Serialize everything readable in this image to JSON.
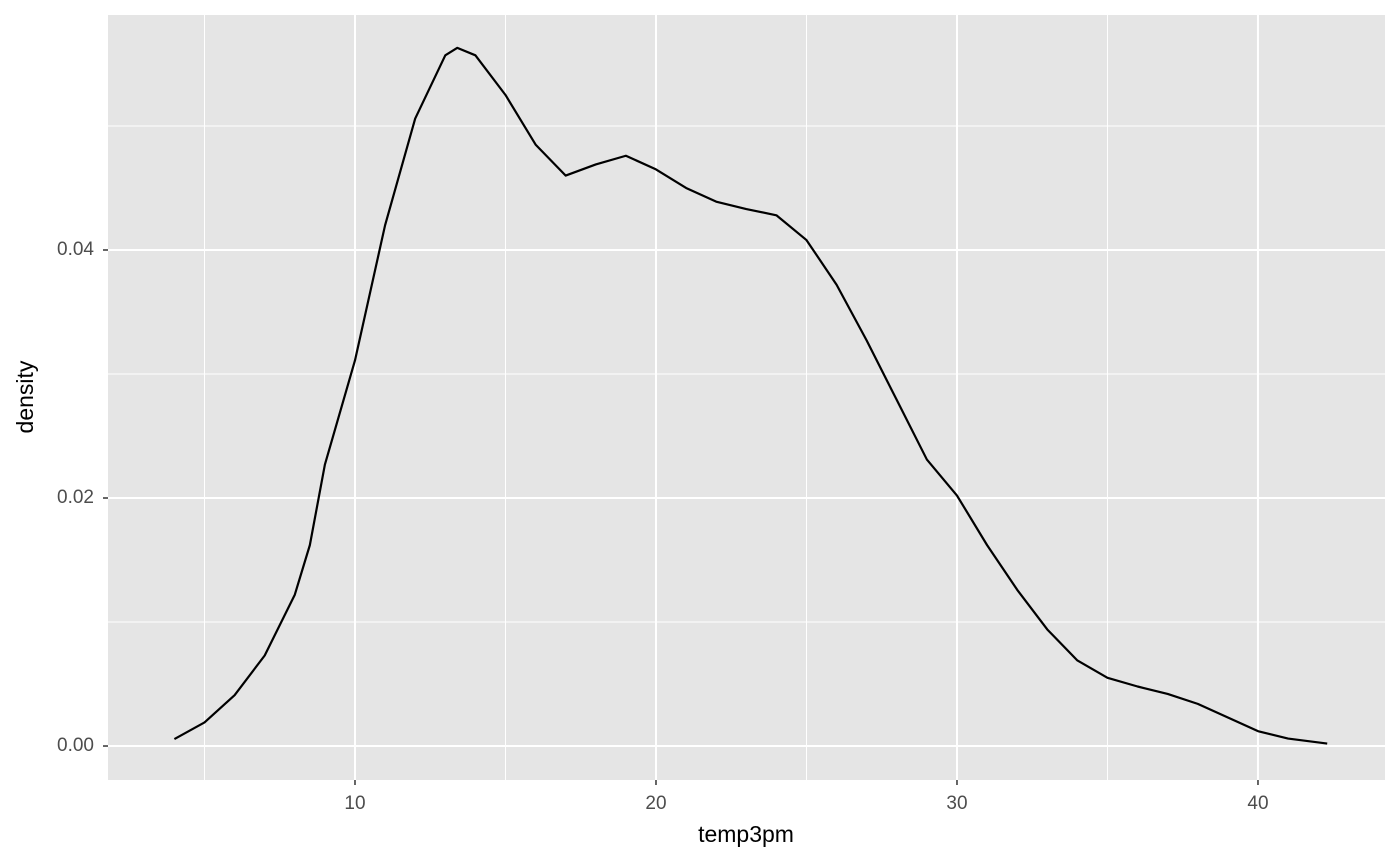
{
  "chart_data": {
    "type": "line",
    "x_label": "temp3pm",
    "y_label": "density",
    "x": [
      4,
      5,
      6,
      7,
      8,
      8.5,
      9,
      10,
      11,
      12,
      13,
      13.4,
      14,
      15,
      16,
      17,
      18,
      19,
      20,
      21,
      22,
      23,
      24,
      25,
      26,
      27,
      28,
      29,
      30,
      31,
      32,
      33,
      34,
      35,
      36,
      37,
      38,
      39,
      40,
      41,
      42.3
    ],
    "series": [
      {
        "color": "#000000",
        "values": [
          0.00056,
          0.0019,
          0.0041,
          0.0073,
          0.0122,
          0.0162,
          0.0227,
          0.0311,
          0.042,
          0.0506,
          0.0557,
          0.0563,
          0.0557,
          0.0525,
          0.0485,
          0.046,
          0.0469,
          0.0476,
          0.0465,
          0.045,
          0.0439,
          0.0433,
          0.0428,
          0.0408,
          0.0372,
          0.0327,
          0.0279,
          0.0231,
          0.0202,
          0.0162,
          0.0126,
          0.0094,
          0.0069,
          0.0055,
          0.0048,
          0.0042,
          0.0034,
          0.0023,
          0.0012,
          0.0006,
          0.0002
        ]
      }
    ],
    "xlim": [
      1.794,
      44.22
    ],
    "ylim": [
      -0.00274,
      0.05895
    ],
    "xticks": [
      10,
      20,
      30,
      40
    ],
    "yticks": [
      {
        "value": 0,
        "label": "0.00"
      },
      {
        "value": 0.02,
        "label": "0.02"
      },
      {
        "value": 0.04,
        "label": "0.04"
      }
    ],
    "xminor": [
      5,
      15,
      25,
      35
    ],
    "yminor": [
      0.01,
      0.03,
      0.05
    ],
    "grid": true,
    "panel_color": "#e5e5e5"
  }
}
